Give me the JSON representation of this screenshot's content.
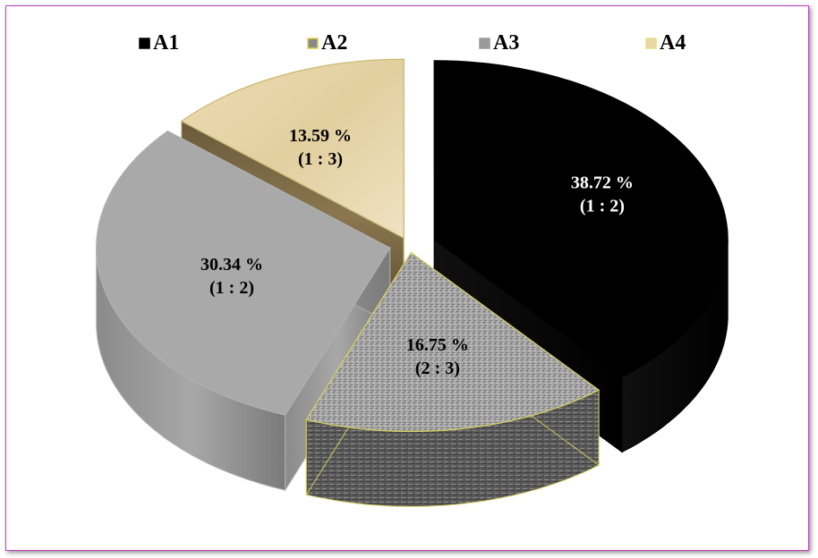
{
  "chart_data": {
    "type": "pie",
    "title": "",
    "legend_position": "top",
    "series": [
      {
        "name": "A1",
        "value": 38.72,
        "label_lines": [
          "38.72 %",
          "(1 : 2)"
        ],
        "color": "#000000"
      },
      {
        "name": "A2",
        "value": 16.75,
        "label_lines": [
          "16.75 %",
          "(2 : 3)"
        ],
        "color": "#9a9a9a"
      },
      {
        "name": "A3",
        "value": 30.34,
        "label_lines": [
          "30.34 %",
          "(1 : 2)"
        ],
        "color": "#aaaaaa"
      },
      {
        "name": "A4",
        "value": 13.59,
        "label_lines": [
          "13.59 %",
          "(1 : 3)"
        ],
        "color": "#e6d3a8"
      }
    ],
    "style": "3d-exploded"
  }
}
